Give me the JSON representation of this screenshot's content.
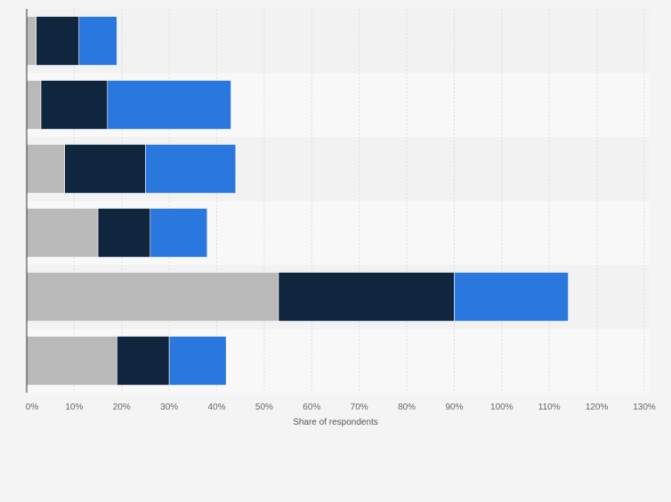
{
  "chart_data": {
    "type": "bar",
    "orientation": "horizontal",
    "stacked": true,
    "title": "",
    "xlabel": "Share of respondents",
    "ylabel": "",
    "xlim": [
      0,
      130
    ],
    "x_ticks": [
      0,
      10,
      20,
      30,
      40,
      50,
      60,
      70,
      80,
      90,
      100,
      110,
      120,
      130
    ],
    "x_tick_labels": [
      "0%",
      "10%",
      "20%",
      "30%",
      "40%",
      "50%",
      "60%",
      "70%",
      "80%",
      "90%",
      "100%",
      "110%",
      "120%",
      "130%"
    ],
    "grid": true,
    "categories": [
      "",
      "",
      "",
      "",
      "",
      ""
    ],
    "series": [
      {
        "name": "",
        "color": "#b9b9b9",
        "values": [
          2,
          3,
          8,
          15,
          53,
          19
        ]
      },
      {
        "name": "",
        "color": "#10263f",
        "values": [
          9,
          14,
          17,
          11,
          37,
          11
        ]
      },
      {
        "name": "",
        "color": "#2a78dd",
        "values": [
          8,
          26,
          19,
          12,
          24,
          12
        ]
      }
    ]
  },
  "colors": {
    "background": "#f4f4f4",
    "band_dark": "#f2f2f2",
    "band_light": "#f8f8f8",
    "gridline": "#dcdcdc",
    "axis": "#333333"
  }
}
